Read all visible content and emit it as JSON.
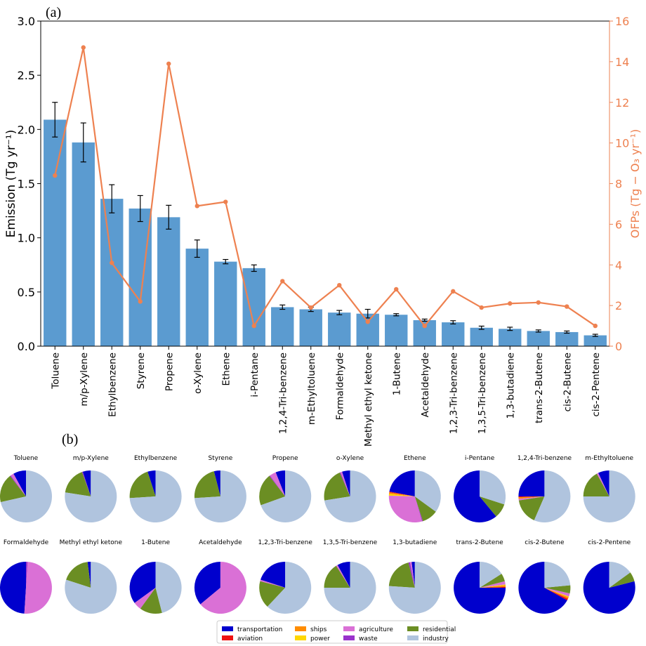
{
  "panel_a_label": "(a)",
  "panel_b_label": "(b)",
  "chart_data": [
    {
      "type": "bar",
      "categories": [
        "Toluene",
        "m/p-Xylene",
        "Ethylbenzene",
        "Styrene",
        "Propene",
        "o-Xylene",
        "Ethene",
        "i-Pentane",
        "1,2,4-Tri-benzene",
        "m-Ethyltoluene",
        "Formaldehyde",
        "Methyl ethyl ketone",
        "1-Butene",
        "Acetaldehyde",
        "1,2,3-Tri-benzene",
        "1,3,5-Tri-benzene",
        "1,3-butadiene",
        "trans-2-Butene",
        "cis-2-Butene",
        "cis-2-Pentene"
      ],
      "series": [
        {
          "values": [
            2.09,
            1.88,
            1.36,
            1.27,
            1.19,
            0.9,
            0.78,
            0.72,
            0.36,
            0.34,
            0.31,
            0.3,
            0.29,
            0.24,
            0.22,
            0.17,
            0.16,
            0.14,
            0.13,
            0.1
          ],
          "error": [
            0.16,
            0.18,
            0.13,
            0.12,
            0.11,
            0.08,
            0.02,
            0.03,
            0.02,
            0.02,
            0.02,
            0.04,
            0.01,
            0.01,
            0.015,
            0.015,
            0.015,
            0.01,
            0.01,
            0.01
          ],
          "color": "#5b9bd0"
        },
        {
          "values": [
            8.4,
            14.7,
            4.1,
            2.2,
            13.9,
            6.9,
            7.1,
            1.0,
            3.2,
            1.9,
            3.0,
            1.2,
            2.8,
            1.0,
            2.7,
            1.9,
            2.1,
            2.15,
            1.95,
            1.0
          ],
          "color": "#ee8150",
          "axis": "right"
        }
      ],
      "ylabel": "Emission (Tg yr⁻¹)",
      "ylabel_right": "OFPs (Tg − O₃ yr⁻¹)",
      "ylim": [
        0,
        3.0
      ],
      "ylim_right": [
        0,
        16
      ],
      "yticks": [
        "0.0",
        "0.5",
        "1.0",
        "1.5",
        "2.0",
        "2.5",
        "3.0"
      ],
      "yticks_right": [
        "0",
        "2",
        "4",
        "6",
        "8",
        "10",
        "12",
        "14",
        "16"
      ]
    },
    {
      "type": "pie",
      "sectors": [
        "transportation",
        "aviation",
        "ships",
        "power",
        "agriculture",
        "waste",
        "residential",
        "industry"
      ],
      "colors": [
        "#0000cd",
        "#ee1111",
        "#ff8c00",
        "#ffd700",
        "#da70d6",
        "#9932cc",
        "#6b8e23",
        "#b0c4de"
      ],
      "pies": [
        {
          "name": "Toluene",
          "values": [
            0.08,
            0,
            0,
            0,
            0.02,
            0.005,
            0.18,
            0.715
          ]
        },
        {
          "name": "m/p-Xylene",
          "values": [
            0.05,
            0,
            0,
            0,
            0,
            0.005,
            0.17,
            0.775
          ]
        },
        {
          "name": "Ethylbenzene",
          "values": [
            0.05,
            0,
            0,
            0,
            0,
            0,
            0.21,
            0.74
          ]
        },
        {
          "name": "Styrene",
          "values": [
            0.04,
            0,
            0,
            0,
            0,
            0,
            0.22,
            0.74
          ]
        },
        {
          "name": "Propene",
          "values": [
            0.06,
            0,
            0,
            0,
            0.04,
            0.005,
            0.2,
            0.695
          ]
        },
        {
          "name": "o-Xylene",
          "values": [
            0.05,
            0,
            0,
            0,
            0.01,
            0.005,
            0.21,
            0.725
          ]
        },
        {
          "name": "Ethene",
          "values": [
            0.22,
            0.005,
            0.01,
            0.01,
            0.3,
            0.005,
            0.1,
            0.35
          ]
        },
        {
          "name": "i-Pentane",
          "values": [
            0.61,
            0,
            0,
            0,
            0,
            0,
            0.09,
            0.3
          ]
        },
        {
          "name": "1,2,4-Tri-benzene",
          "values": [
            0.25,
            0.005,
            0.01,
            0,
            0.01,
            0,
            0.16,
            0.565
          ]
        },
        {
          "name": "m-Ethyltoluene",
          "values": [
            0.07,
            0,
            0,
            0,
            0.01,
            0,
            0.17,
            0.75
          ]
        },
        {
          "name": "Formaldehyde",
          "values": [
            0.49,
            0,
            0,
            0,
            0.5,
            0.01,
            0,
            0
          ]
        },
        {
          "name": "Methyl ethyl ketone",
          "values": [
            0.02,
            0,
            0,
            0,
            0,
            0,
            0.18,
            0.8
          ]
        },
        {
          "name": "1-Butene",
          "values": [
            0.35,
            0,
            0,
            0,
            0.05,
            0,
            0.14,
            0.46
          ]
        },
        {
          "name": "Acetaldehyde",
          "values": [
            0.36,
            0,
            0,
            0,
            0.64,
            0,
            0,
            0
          ]
        },
        {
          "name": "1,2,3-Tri-benzene",
          "values": [
            0.2,
            0,
            0,
            0,
            0.01,
            0,
            0.17,
            0.62
          ]
        },
        {
          "name": "1,3,5-Tri-benzene",
          "values": [
            0.08,
            0,
            0,
            0,
            0.01,
            0,
            0.16,
            0.75
          ]
        },
        {
          "name": "1,3-butadiene",
          "values": [
            0.02,
            0,
            0,
            0,
            0.01,
            0.01,
            0.2,
            0.76
          ]
        },
        {
          "name": "trans-2-Butene",
          "values": [
            0.75,
            0.005,
            0.01,
            0.005,
            0.02,
            0,
            0.05,
            0.16
          ]
        },
        {
          "name": "cis-2-Butene",
          "values": [
            0.67,
            0.01,
            0.01,
            0.005,
            0.02,
            0,
            0.05,
            0.235
          ]
        },
        {
          "name": "cis-2-Pentene",
          "values": [
            0.79,
            0,
            0,
            0,
            0,
            0,
            0.06,
            0.15
          ]
        }
      ]
    }
  ]
}
